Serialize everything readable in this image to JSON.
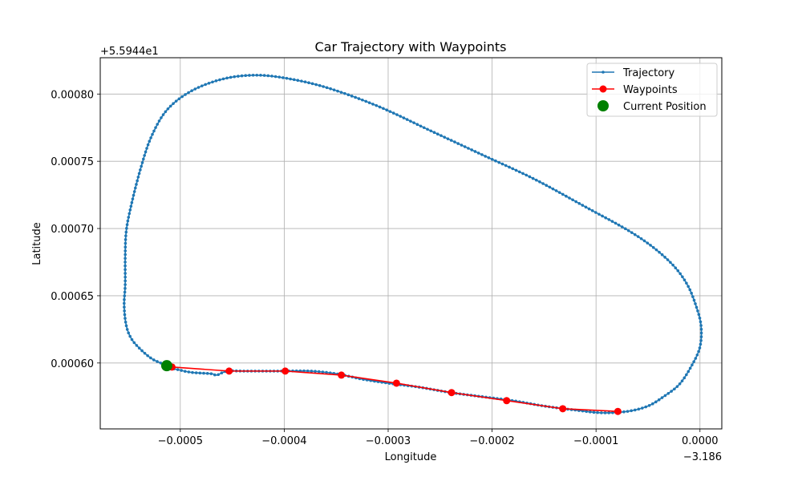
{
  "chart_data": {
    "type": "line",
    "title": "Car Trajectory with Waypoints",
    "xlabel": "Longitude",
    "ylabel": "Latitude",
    "x_offset_text": "−3.186",
    "y_offset_text": "+5.5944e1",
    "xlim": [
      -0.000577,
      2.1e-05
    ],
    "ylim": [
      0.000551,
      0.000827
    ],
    "x_ticks": [
      -0.0005,
      -0.0004,
      -0.0003,
      -0.0002,
      -0.0001,
      0.0
    ],
    "x_tick_labels": [
      "−0.0005",
      "−0.0004",
      "−0.0003",
      "−0.0002",
      "−0.0001",
      "0.0000"
    ],
    "y_ticks": [
      0.0006,
      0.00065,
      0.0007,
      0.00075,
      0.0008
    ],
    "y_tick_labels": [
      "0.00060",
      "0.00065",
      "0.00070",
      "0.00075",
      "0.00080"
    ],
    "grid": true,
    "legend_position": "top-right",
    "colors": {
      "trajectory": "#1f77b4",
      "waypoints": "#ff0000",
      "current": "#008000"
    },
    "series": [
      {
        "name": "Trajectory",
        "kind": "line-dots",
        "anchors": [
          [
            -0.000513,
            0.000597
          ],
          [
            -0.000502,
            0.000595
          ],
          [
            -0.000489,
            0.000593
          ],
          [
            -0.00047,
            0.000592
          ],
          [
            -0.000465,
            0.000591
          ],
          [
            -0.000455,
            0.000594
          ],
          [
            -0.00044,
            0.000594
          ],
          [
            -0.000405,
            0.000594
          ],
          [
            -0.000375,
            0.000594
          ],
          [
            -0.00035,
            0.000592
          ],
          [
            -0.000325,
            0.000588
          ],
          [
            -0.0003,
            0.000585
          ],
          [
            -0.00027,
            0.000582
          ],
          [
            -0.00024,
            0.000578
          ],
          [
            -0.00021,
            0.000575
          ],
          [
            -0.00018,
            0.000572
          ],
          [
            -0.00015,
            0.000568
          ],
          [
            -0.00012,
            0.000565
          ],
          [
            -9.5e-05,
            0.000563
          ],
          [
            -7e-05,
            0.000564
          ],
          [
            -5e-05,
            0.000568
          ],
          [
            -3.5e-05,
            0.000575
          ],
          [
            -2e-05,
            0.000584
          ],
          [
            -8e-06,
            0.000598
          ],
          [
            0.0,
            0.000612
          ],
          [
            1e-06,
            0.000628
          ],
          [
            -4e-06,
            0.000643
          ],
          [
            -1.2e-05,
            0.000658
          ],
          [
            -2.5e-05,
            0.000672
          ],
          [
            -4.5e-05,
            0.000686
          ],
          [
            -7e-05,
            0.000699
          ],
          [
            -0.00011,
            0.000716
          ],
          [
            -0.00016,
            0.000737
          ],
          [
            -0.00021,
            0.000755
          ],
          [
            -0.00026,
            0.000773
          ],
          [
            -0.00031,
            0.000791
          ],
          [
            -0.00036,
            0.000805
          ],
          [
            -0.0004,
            0.000812
          ],
          [
            -0.00043,
            0.000814
          ],
          [
            -0.00046,
            0.000811
          ],
          [
            -0.00049,
            0.000802
          ],
          [
            -0.000513,
            0.000788
          ],
          [
            -0.000528,
            0.000768
          ],
          [
            -0.000538,
            0.000745
          ],
          [
            -0.000547,
            0.000718
          ],
          [
            -0.000552,
            0.000698
          ],
          [
            -0.000553,
            0.000678
          ],
          [
            -0.000553,
            0.000658
          ],
          [
            -0.000554,
            0.000643
          ],
          [
            -0.000552,
            0.000628
          ],
          [
            -0.000547,
            0.000618
          ],
          [
            -0.000538,
            0.00061
          ],
          [
            -0.000527,
            0.000603
          ],
          [
            -0.000516,
            0.000599
          ]
        ]
      },
      {
        "name": "Waypoints",
        "kind": "line-markers",
        "x": [
          -0.000508,
          -0.000453,
          -0.000399,
          -0.000345,
          -0.000292,
          -0.000239,
          -0.000186,
          -0.000132,
          -7.9e-05
        ],
        "y": [
          0.000597,
          0.000594,
          0.000594,
          0.000591,
          0.000585,
          0.000578,
          0.000572,
          0.000566,
          0.000564
        ]
      },
      {
        "name": "Current Position",
        "kind": "point",
        "x": [
          -0.000513
        ],
        "y": [
          0.000598
        ]
      }
    ]
  }
}
